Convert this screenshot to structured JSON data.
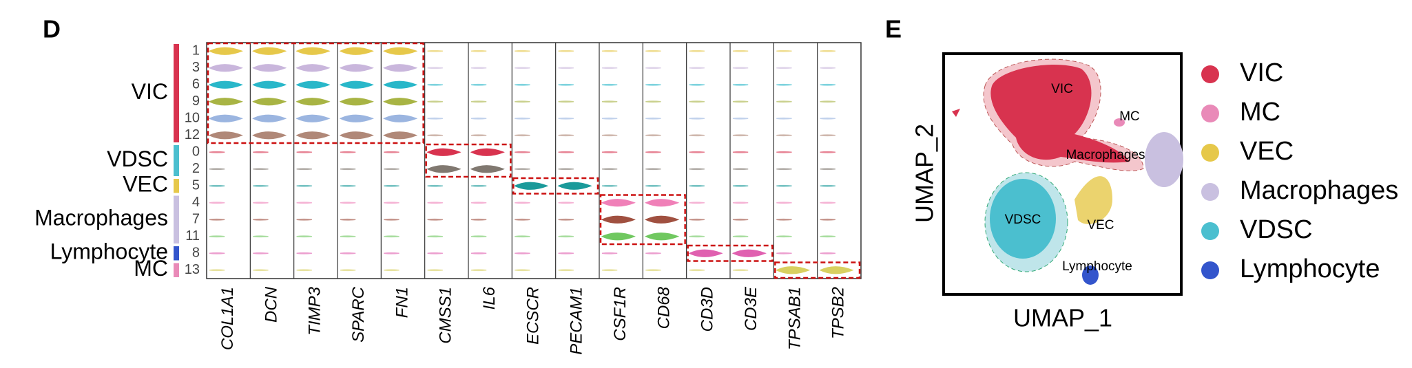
{
  "panel_d": {
    "label": "D",
    "genes": [
      "COL1A1",
      "DCN",
      "TIMP3",
      "SPARC",
      "FN1",
      "CMSS1",
      "IL6",
      "ECSCR",
      "PECAM1",
      "CSF1R",
      "CD68",
      "CD3D",
      "CD3E",
      "TPSAB1",
      "TPSB2"
    ],
    "groups": [
      {
        "name": "VIC",
        "color": "#d8334f",
        "clusters": [
          {
            "label": "1",
            "color": "#e6c84a"
          },
          {
            "label": "3",
            "color": "#c9b6dc"
          },
          {
            "label": "6",
            "color": "#29b7c9"
          },
          {
            "label": "9",
            "color": "#a8b444"
          },
          {
            "label": "10",
            "color": "#9bb5e0"
          },
          {
            "label": "12",
            "color": "#b08878"
          }
        ]
      },
      {
        "name": "VDSC",
        "color": "#4bbfcf",
        "clusters": [
          {
            "label": "0",
            "color": "#d8334f"
          },
          {
            "label": "2",
            "color": "#807870"
          }
        ]
      },
      {
        "name": "VEC",
        "color": "#e6c84a",
        "clusters": [
          {
            "label": "5",
            "color": "#1a9a9a"
          }
        ]
      },
      {
        "name": "Macrophages",
        "color": "#c9c0e0",
        "clusters": [
          {
            "label": "4",
            "color": "#f080b8"
          },
          {
            "label": "7",
            "color": "#a05040"
          },
          {
            "label": "11",
            "color": "#70c860"
          }
        ]
      },
      {
        "name": "Lymphocyte",
        "color": "#3355cc",
        "clusters": [
          {
            "label": "8",
            "color": "#e060b0"
          }
        ]
      },
      {
        "name": "MC",
        "color": "#e98ab8",
        "clusters": [
          {
            "label": "13",
            "color": "#d8d060"
          }
        ]
      }
    ]
  },
  "panel_e": {
    "label": "E",
    "x_label": "UMAP_1",
    "y_label": "UMAP_2",
    "cluster_labels": [
      "VIC",
      "MC",
      "Macrophages",
      "VDSC",
      "VEC",
      "Lymphocyte"
    ],
    "legend": [
      {
        "name": "VIC",
        "color": "#d8334f"
      },
      {
        "name": "MC",
        "color": "#e98ab8"
      },
      {
        "name": "VEC",
        "color": "#e6c84a"
      },
      {
        "name": "Macrophages",
        "color": "#c9c0e0"
      },
      {
        "name": "VDSC",
        "color": "#4bbfcf"
      },
      {
        "name": "Lymphocyte",
        "color": "#3355cc"
      }
    ]
  }
}
